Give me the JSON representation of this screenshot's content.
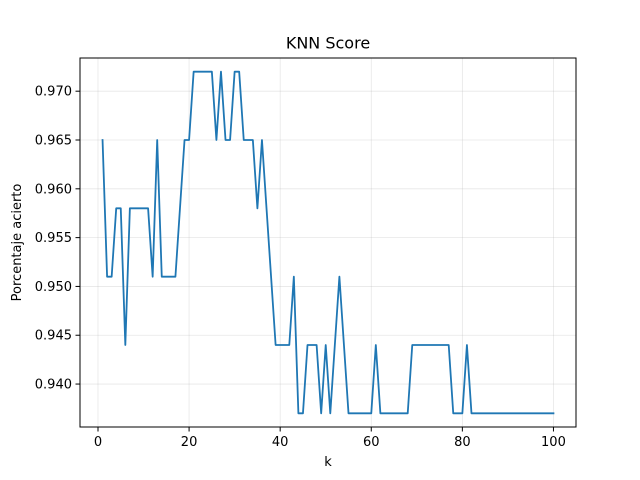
{
  "chart_data": {
    "type": "line",
    "title": "KNN Score",
    "xlabel": "k",
    "ylabel": "Porcentaje acierto",
    "xlim": [
      -3.95,
      104.95
    ],
    "ylim": [
      0.9356,
      0.9734
    ],
    "xticks": [
      0,
      20,
      40,
      60,
      80,
      100
    ],
    "xtick_labels": [
      "0",
      "20",
      "40",
      "60",
      "80",
      "100"
    ],
    "yticks": [
      0.94,
      0.945,
      0.95,
      0.955,
      0.96,
      0.965,
      0.97
    ],
    "ytick_labels": [
      "0.940",
      "0.945",
      "0.950",
      "0.955",
      "0.960",
      "0.965",
      "0.970"
    ],
    "grid": true,
    "legend": "none",
    "series": [
      {
        "color": "#1f77b4",
        "x": [
          1,
          2,
          3,
          4,
          5,
          6,
          7,
          8,
          9,
          10,
          11,
          12,
          13,
          14,
          15,
          16,
          17,
          18,
          19,
          20,
          21,
          22,
          23,
          24,
          25,
          26,
          27,
          28,
          29,
          30,
          31,
          32,
          33,
          34,
          35,
          36,
          37,
          38,
          39,
          40,
          41,
          42,
          43,
          44,
          45,
          46,
          47,
          48,
          49,
          50,
          51,
          52,
          53,
          54,
          55,
          56,
          57,
          58,
          59,
          60,
          61,
          62,
          63,
          64,
          65,
          66,
          67,
          68,
          69,
          70,
          71,
          72,
          73,
          74,
          75,
          76,
          77,
          78,
          79,
          80,
          81,
          82,
          83,
          84,
          85,
          86,
          87,
          88,
          89,
          90,
          91,
          92,
          93,
          94,
          95,
          96,
          97,
          98,
          99,
          100
        ],
        "y": [
          0.965,
          0.951,
          0.951,
          0.958,
          0.958,
          0.944,
          0.958,
          0.958,
          0.958,
          0.958,
          0.958,
          0.951,
          0.965,
          0.951,
          0.951,
          0.951,
          0.951,
          0.958,
          0.965,
          0.965,
          0.972,
          0.972,
          0.972,
          0.972,
          0.972,
          0.965,
          0.972,
          0.965,
          0.965,
          0.972,
          0.972,
          0.965,
          0.965,
          0.965,
          0.958,
          0.965,
          0.958,
          0.951,
          0.944,
          0.944,
          0.944,
          0.944,
          0.951,
          0.937,
          0.937,
          0.944,
          0.944,
          0.944,
          0.937,
          0.944,
          0.937,
          0.944,
          0.951,
          0.944,
          0.937,
          0.937,
          0.937,
          0.937,
          0.937,
          0.937,
          0.944,
          0.937,
          0.937,
          0.937,
          0.937,
          0.937,
          0.937,
          0.937,
          0.944,
          0.944,
          0.944,
          0.944,
          0.944,
          0.944,
          0.944,
          0.944,
          0.944,
          0.937,
          0.937,
          0.937,
          0.944,
          0.937,
          0.937,
          0.937,
          0.937,
          0.937,
          0.937,
          0.937,
          0.937,
          0.937,
          0.937,
          0.937,
          0.937,
          0.937,
          0.937,
          0.937,
          0.937,
          0.937,
          0.937,
          0.937
        ]
      }
    ]
  }
}
